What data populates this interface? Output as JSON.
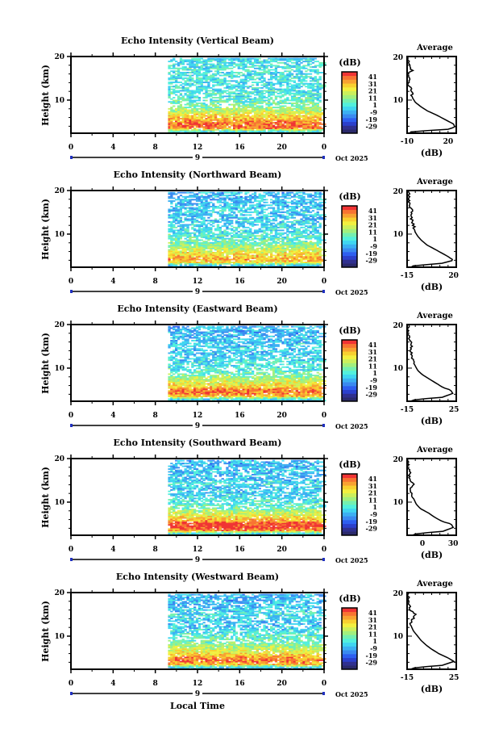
{
  "chart_data": {
    "type": "heatmap",
    "xlabel": "Local Time",
    "x_ticks": [
      "0",
      "4",
      "8",
      "12",
      "16",
      "20",
      "0"
    ],
    "xlim": [
      0,
      24
    ],
    "date_label": "9",
    "month_label": "Oct 2025",
    "ylabel": "Height (km)",
    "y_ticks": [
      "20",
      "10"
    ],
    "ylim": [
      2.4,
      20
    ],
    "data_start_hour": 9.2,
    "colorbar": {
      "label": "(dB)",
      "ticks": [
        "41",
        "31",
        "21",
        "11",
        "1",
        "-9",
        "-19",
        "-29"
      ],
      "range": [
        -29,
        41
      ],
      "colors": [
        "#2b2a6b",
        "#30308f",
        "#2c40cc",
        "#2e5ff0",
        "#3a8af0",
        "#3cb0f2",
        "#40d6f0",
        "#52f0dc",
        "#74f0b0",
        "#a2f07e",
        "#ccf05c",
        "#f2f040",
        "#f8d030",
        "#f8a232",
        "#f87432",
        "#f03434"
      ]
    },
    "panels": [
      {
        "title": "Echo Intensity (Vertical Beam)",
        "avg_title": "Average",
        "avg_xlabel": "(dB)",
        "avg_ticks": [
          "-10",
          "20"
        ],
        "avg_tick_values": [
          -10,
          20
        ],
        "avg_xlim": [
          -10,
          26
        ],
        "profile": [
          [
            2.4,
            -8
          ],
          [
            2.8,
            -7
          ],
          [
            3.0,
            5
          ],
          [
            3.3,
            20
          ],
          [
            3.8,
            25
          ],
          [
            4.5,
            24
          ],
          [
            5.5,
            18
          ],
          [
            6.5,
            12
          ],
          [
            7.5,
            5
          ],
          [
            8.5,
            0
          ],
          [
            9.5,
            -4
          ],
          [
            10.5,
            -6
          ],
          [
            12,
            -7
          ],
          [
            13,
            -8
          ],
          [
            14,
            -9
          ],
          [
            15,
            -8
          ],
          [
            16,
            -9
          ],
          [
            17,
            -6
          ],
          [
            17.5,
            -9
          ],
          [
            18,
            -8
          ],
          [
            19,
            -9
          ],
          [
            20,
            -9
          ]
        ]
      },
      {
        "title": "Echo Intensity (Northward Beam)",
        "avg_title": "Average",
        "avg_xlabel": "(dB)",
        "avg_ticks": [
          "-15",
          "20"
        ],
        "avg_tick_values": [
          -15,
          20
        ],
        "avg_xlim": [
          -15,
          22
        ],
        "profile": [
          [
            2.4,
            -12
          ],
          [
            2.8,
            -10
          ],
          [
            3.2,
            10
          ],
          [
            4,
            20
          ],
          [
            4.8,
            16
          ],
          [
            5.5,
            12
          ],
          [
            6.5,
            6
          ],
          [
            7.5,
            0
          ],
          [
            8.5,
            -4
          ],
          [
            9.5,
            -7
          ],
          [
            10.5,
            -9
          ],
          [
            12,
            -10
          ],
          [
            13,
            -11
          ],
          [
            14,
            -12
          ],
          [
            15,
            -11
          ],
          [
            16,
            -12
          ],
          [
            17,
            -13
          ],
          [
            18,
            -14
          ],
          [
            20,
            -14
          ]
        ]
      },
      {
        "title": "Echo Intensity (Eastward Beam)",
        "avg_title": "Average",
        "avg_xlabel": "(dB)",
        "avg_ticks": [
          "-15",
          "25"
        ],
        "avg_tick_values": [
          -15,
          25
        ],
        "avg_xlim": [
          -15,
          27
        ],
        "profile": [
          [
            2.4,
            -12
          ],
          [
            2.8,
            -8
          ],
          [
            3.3,
            15
          ],
          [
            4.2,
            24
          ],
          [
            5,
            22
          ],
          [
            5.5,
            16
          ],
          [
            6.5,
            10
          ],
          [
            7.5,
            4
          ],
          [
            8.5,
            -2
          ],
          [
            9.5,
            -6
          ],
          [
            11,
            -9
          ],
          [
            12,
            -10
          ],
          [
            13,
            -11
          ],
          [
            14,
            -12
          ],
          [
            15,
            -11
          ],
          [
            16,
            -12
          ],
          [
            17,
            -13
          ],
          [
            18,
            -14
          ],
          [
            20,
            -14
          ]
        ]
      },
      {
        "title": "Echo Intensity (Southward Beam)",
        "avg_title": "Average",
        "avg_xlabel": "(dB)",
        "avg_ticks": [
          "0",
          "30"
        ],
        "avg_tick_values": [
          0,
          30
        ],
        "avg_xlim": [
          -15,
          33
        ],
        "profile": [
          [
            2.4,
            -10
          ],
          [
            2.8,
            -5
          ],
          [
            3.3,
            20
          ],
          [
            4.2,
            30
          ],
          [
            5,
            28
          ],
          [
            5.5,
            20
          ],
          [
            6.5,
            12
          ],
          [
            7.5,
            6
          ],
          [
            8.5,
            -2
          ],
          [
            9.5,
            -6
          ],
          [
            11,
            -9
          ],
          [
            12,
            -11
          ],
          [
            13,
            -12
          ],
          [
            14,
            -8
          ],
          [
            15,
            -12
          ],
          [
            16,
            -13
          ],
          [
            17,
            -12
          ],
          [
            18,
            -14
          ],
          [
            20,
            -14
          ]
        ]
      },
      {
        "title": "Echo Intensity (Westward Beam)",
        "avg_title": "Average",
        "avg_xlabel": "(dB)",
        "avg_ticks": [
          "-15",
          "25"
        ],
        "avg_tick_values": [
          -15,
          25
        ],
        "avg_xlim": [
          -15,
          27
        ],
        "profile": [
          [
            2.4,
            -12
          ],
          [
            2.8,
            -8
          ],
          [
            3.3,
            15
          ],
          [
            4.2,
            25
          ],
          [
            5,
            20
          ],
          [
            6,
            12
          ],
          [
            7,
            6
          ],
          [
            8,
            1
          ],
          [
            9,
            -3
          ],
          [
            10,
            -6
          ],
          [
            11,
            -9
          ],
          [
            12,
            -11
          ],
          [
            13,
            -12
          ],
          [
            14,
            -10
          ],
          [
            15,
            -8
          ],
          [
            16,
            -12
          ],
          [
            17,
            -13
          ],
          [
            18,
            -14
          ],
          [
            20,
            -14
          ]
        ]
      }
    ]
  }
}
